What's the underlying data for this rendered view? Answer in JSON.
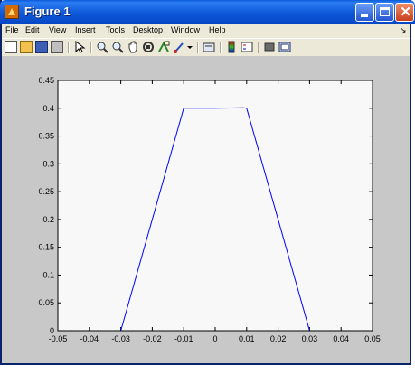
{
  "window": {
    "title": "Figure 1"
  },
  "menu": {
    "items": [
      {
        "label": "File"
      },
      {
        "label": "Edit"
      },
      {
        "label": "View"
      },
      {
        "label": "Insert"
      },
      {
        "label": "Tools"
      },
      {
        "label": "Desktop"
      },
      {
        "label": "Window"
      },
      {
        "label": "Help"
      }
    ],
    "overflow_glyph": "↘"
  },
  "toolbar": {
    "icons": [
      "new-figure-icon",
      "open-file-icon",
      "save-icon",
      "print-icon",
      "edit-plot-arrow-icon",
      "zoom-in-icon",
      "zoom-out-icon",
      "pan-hand-icon",
      "rotate-3d-icon",
      "data-cursor-icon",
      "brush-icon",
      "dropdown-icon",
      "link-plot-icon",
      "colorbar-icon",
      "legend-icon",
      "hide-plot-tools-icon",
      "show-plot-tools-icon"
    ]
  },
  "colors": {
    "line": "#0000ff",
    "axes_bg": "#f8f8f8",
    "figure_bg": "#c8c8c8"
  },
  "chart_data": {
    "type": "line",
    "title": "",
    "xlabel": "",
    "ylabel": "",
    "xlim": [
      -0.05,
      0.05
    ],
    "ylim": [
      0,
      0.45
    ],
    "xticks": [
      "-0.05",
      "-0.04",
      "-0.03",
      "-0.02",
      "-0.01",
      "0",
      "0.01",
      "0.02",
      "0.03",
      "0.04",
      "0.05"
    ],
    "yticks": [
      "0",
      "0.05",
      "0.1",
      "0.15",
      "0.2",
      "0.25",
      "0.3",
      "0.35",
      "0.4",
      "0.45"
    ],
    "grid": false,
    "series": [
      {
        "x": [
          -0.05,
          -0.03,
          -0.01,
          0.0,
          0.009,
          0.01,
          0.03,
          0.05
        ],
        "y": [
          0,
          0,
          0.4,
          0.4,
          0.401,
          0.4,
          0,
          0
        ]
      }
    ]
  }
}
